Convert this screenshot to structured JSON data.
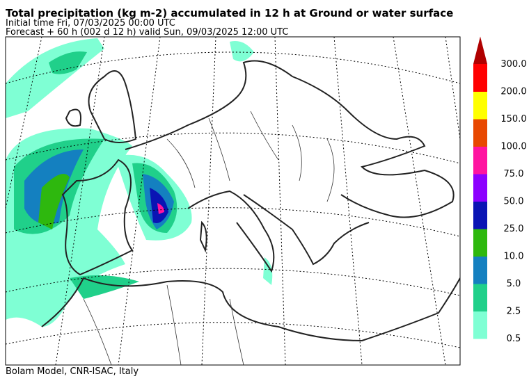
{
  "header": {
    "title": "Total precipitation (kg m-2) accumulated in  12 h at Ground or water surface",
    "initial_time": "Initial time  Fri, 07/03/2025  00:00 UTC",
    "forecast": "Forecast  +  60 h  (002 d 12 h)  valid Sun, 09/03/2025 12:00 UTC"
  },
  "colorbar": {
    "labels": [
      "0.5",
      "2.5",
      "5.0",
      "10.0",
      "25.0",
      "50.0",
      "75.0",
      "100.0",
      "150.0",
      "200.0",
      "300.0"
    ],
    "colors": [
      "#7fffd4",
      "#20d08a",
      "#1480c0",
      "#2eb80e",
      "#0a14b4",
      "#8c00ff",
      "#ff14a0",
      "#e84800",
      "#ffff00",
      "#ff0000",
      "#b00000"
    ]
  },
  "footer": "Bolam Model, CNR-ISAC, Italy"
}
